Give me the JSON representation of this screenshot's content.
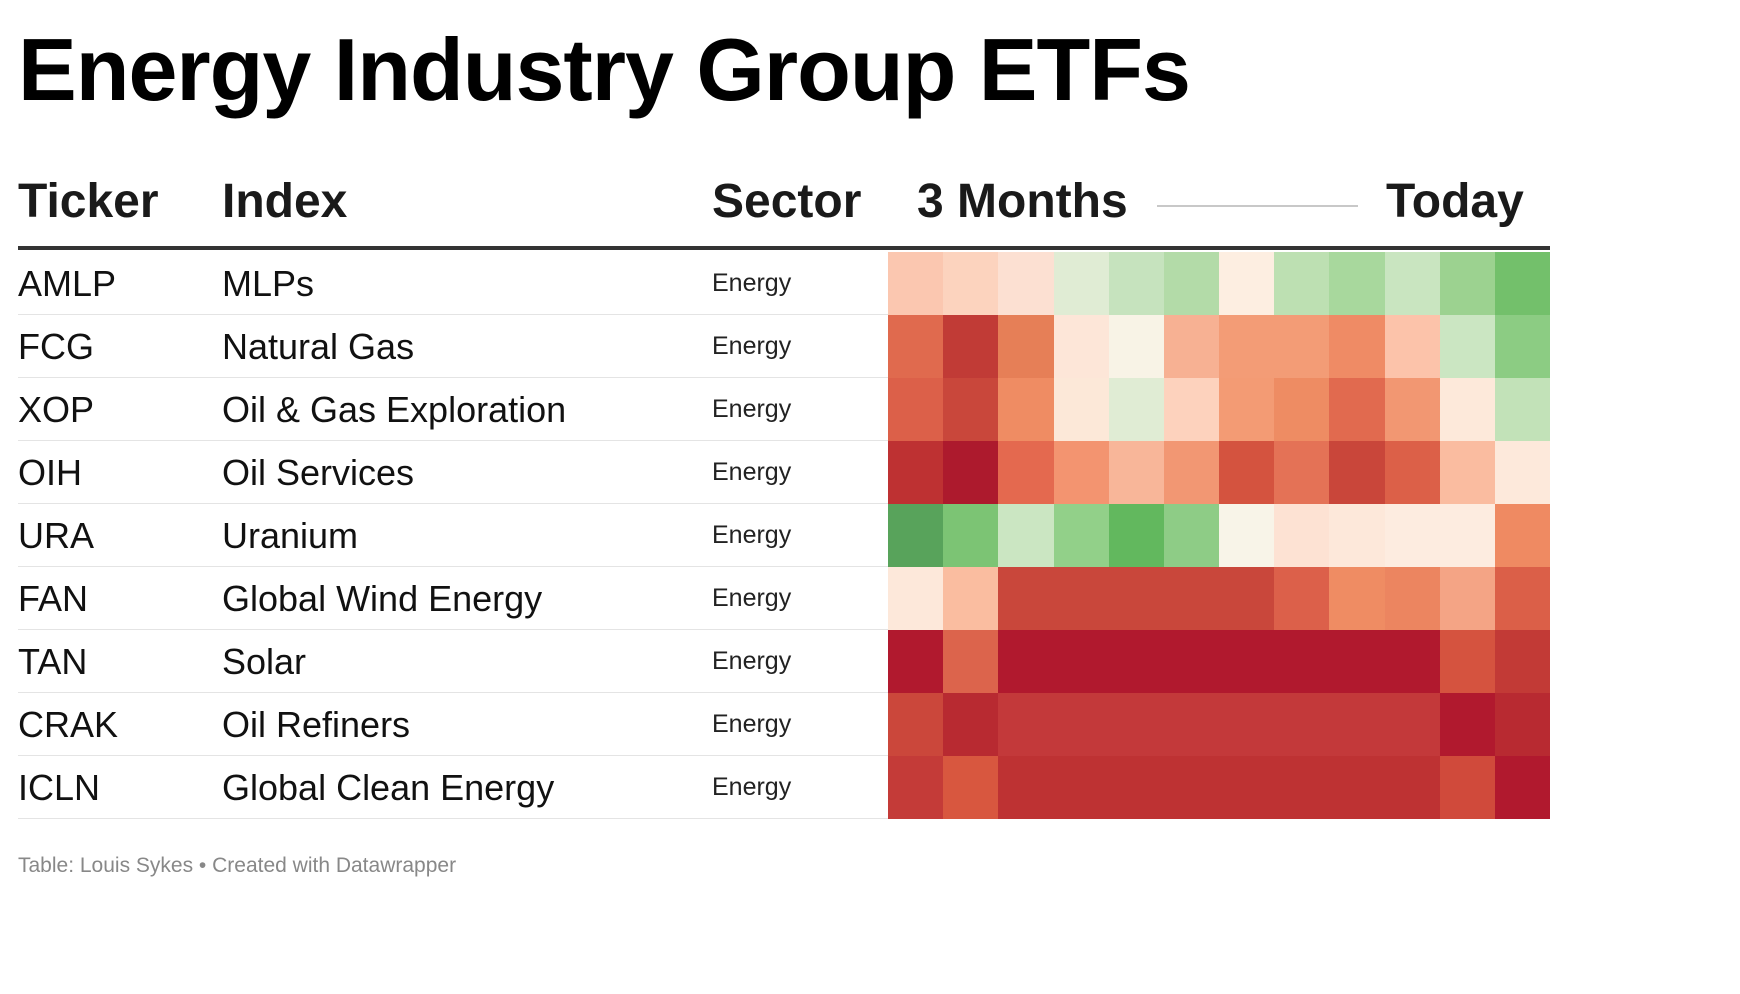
{
  "title": "Energy Industry Group ETFs",
  "columns": {
    "ticker": "Ticker",
    "index": "Index",
    "sector": "Sector",
    "range_start": "3 Months",
    "range_end": "Today"
  },
  "rows": [
    {
      "ticker": "AMLP",
      "index": "MLPs",
      "sector": "Energy"
    },
    {
      "ticker": "FCG",
      "index": "Natural Gas",
      "sector": "Energy"
    },
    {
      "ticker": "XOP",
      "index": "Oil & Gas Exploration",
      "sector": "Energy"
    },
    {
      "ticker": "OIH",
      "index": "Oil Services",
      "sector": "Energy"
    },
    {
      "ticker": "URA",
      "index": "Uranium",
      "sector": "Energy"
    },
    {
      "ticker": "FAN",
      "index": "Global Wind Energy",
      "sector": "Energy"
    },
    {
      "ticker": "TAN",
      "index": "Solar",
      "sector": "Energy"
    },
    {
      "ticker": "CRAK",
      "index": "Oil Refiners",
      "sector": "Energy"
    },
    {
      "ticker": "ICLN",
      "index": "Global Clean Energy",
      "sector": "Energy"
    }
  ],
  "chart_data": {
    "type": "heatmap",
    "x_start_label": "3 Months",
    "x_end_label": "Today",
    "rows": [
      "AMLP",
      "FCG",
      "XOP",
      "OIH",
      "URA",
      "FAN",
      "TAN",
      "CRAK",
      "ICLN"
    ],
    "colors": [
      [
        "#fbc7b0",
        "#fcd3be",
        "#fce0d2",
        "#e0ecd4",
        "#c6e3be",
        "#b3dba8",
        "#fdeee1",
        "#bde0b2",
        "#a8d89d",
        "#c9e5c0",
        "#9cd290",
        "#73c06b"
      ],
      [
        "#e06a4e",
        "#c13b36",
        "#e67f57",
        "#fde6d8",
        "#f8f3e6",
        "#f7b193",
        "#f39c76",
        "#f39c76",
        "#ef8b65",
        "#fcc3aa",
        "#cbe6c2",
        "#8ccc83"
      ],
      [
        "#dc6049",
        "#c9473b",
        "#ef8c63",
        "#fce8d8",
        "#e0ecd4",
        "#fdd2bd",
        "#f39b74",
        "#ee8c63",
        "#e16a4f",
        "#f29772",
        "#fde9da",
        "#c2e2b8"
      ],
      [
        "#be3132",
        "#ad1a2d",
        "#e4694f",
        "#f39470",
        "#f8b699",
        "#f29773",
        "#d4533f",
        "#e47256",
        "#c9463a",
        "#dc6048",
        "#fabca0",
        "#fde9db"
      ],
      [
        "#58a35b",
        "#7cc474",
        "#cbe6c2",
        "#92d089",
        "#62b85e",
        "#8ecc86",
        "#f8f4e8",
        "#fde2d3",
        "#fde8da",
        "#fdece0",
        "#fdece0",
        "#ef8a62"
      ],
      [
        "#fde8da",
        "#fabda0",
        "#c9473b",
        "#c9473b",
        "#c9473b",
        "#c9473b",
        "#c9473b",
        "#dc604a",
        "#ef8c63",
        "#ec8560",
        "#f4a485",
        "#db5f48"
      ],
      [
        "#b1192e",
        "#dc644c",
        "#b1192e",
        "#b1192e",
        "#b1192e",
        "#b1192e",
        "#b1192e",
        "#b1192e",
        "#b1192e",
        "#b1192e",
        "#d5533f",
        "#c23a36"
      ],
      [
        "#cb473b",
        "#b82a31",
        "#c3393a",
        "#c3393a",
        "#c3393a",
        "#c3393a",
        "#c3393a",
        "#c3393a",
        "#c3393a",
        "#c3393a",
        "#b1192e",
        "#b82a31"
      ],
      [
        "#c43b38",
        "#d8573f",
        "#be3233",
        "#be3233",
        "#be3233",
        "#be3233",
        "#be3233",
        "#be3233",
        "#be3233",
        "#be3233",
        "#d04a3b",
        "#b1192e"
      ]
    ]
  },
  "footer": "Table: Louis Sykes • Created with Datawrapper"
}
